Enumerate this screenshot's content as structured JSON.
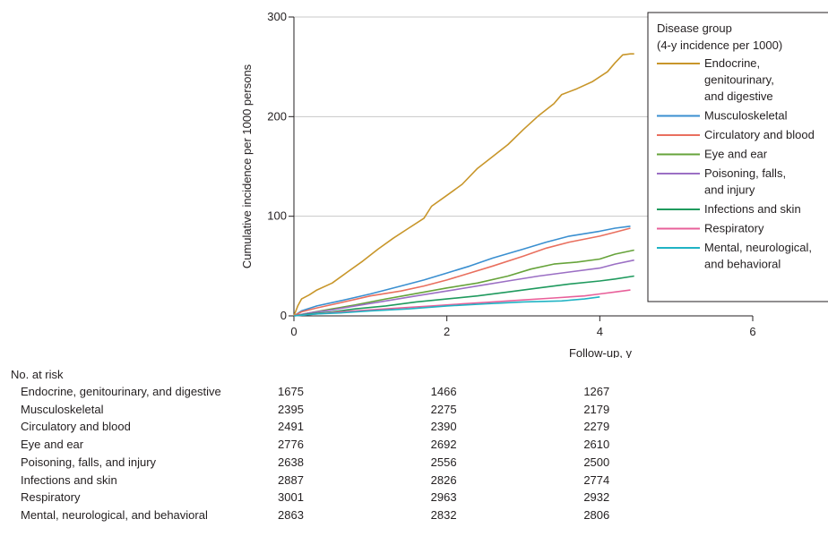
{
  "chart_data": {
    "type": "line",
    "title": "",
    "xlabel": "Follow-up, y",
    "ylabel": "Cumulative incidence per 1000 persons",
    "xlim": [
      0,
      6
    ],
    "ylim": [
      0,
      300
    ],
    "x_ticks": [
      "0",
      "2",
      "4",
      "6"
    ],
    "y_ticks": [
      "0",
      "100",
      "200",
      "300"
    ],
    "grid": "horizontal",
    "legend": {
      "title_line1": "Disease group",
      "title_line2": "(4-y incidence per 1000)",
      "placement": "top-right"
    },
    "series": [
      {
        "name": "Endocrine, genitourinary, and digestive",
        "legend_lines": [
          "Endocrine,",
          "genitourinary,",
          "and digestive"
        ],
        "color": "#c8962a",
        "points": [
          [
            0,
            0
          ],
          [
            0.05,
            10
          ],
          [
            0.1,
            17
          ],
          [
            0.2,
            21
          ],
          [
            0.3,
            26
          ],
          [
            0.5,
            33
          ],
          [
            0.7,
            44
          ],
          [
            0.9,
            55
          ],
          [
            1.1,
            67
          ],
          [
            1.3,
            78
          ],
          [
            1.5,
            88
          ],
          [
            1.7,
            98
          ],
          [
            1.8,
            110
          ],
          [
            2.0,
            121
          ],
          [
            2.2,
            132
          ],
          [
            2.4,
            148
          ],
          [
            2.6,
            160
          ],
          [
            2.8,
            172
          ],
          [
            3.0,
            187
          ],
          [
            3.2,
            201
          ],
          [
            3.4,
            213
          ],
          [
            3.5,
            222
          ],
          [
            3.7,
            228
          ],
          [
            3.9,
            235
          ],
          [
            4.0,
            240
          ],
          [
            4.1,
            245
          ],
          [
            4.2,
            254
          ],
          [
            4.3,
            262
          ],
          [
            4.4,
            263
          ],
          [
            4.45,
            263
          ]
        ]
      },
      {
        "name": "Musculoskeletal",
        "legend_lines": [
          "Musculoskeletal"
        ],
        "color": "#3a8fd0",
        "points": [
          [
            0,
            0
          ],
          [
            0.1,
            5
          ],
          [
            0.3,
            10
          ],
          [
            0.6,
            15
          ],
          [
            1.0,
            22
          ],
          [
            1.4,
            30
          ],
          [
            1.7,
            36
          ],
          [
            2.0,
            43
          ],
          [
            2.3,
            50
          ],
          [
            2.6,
            58
          ],
          [
            3.0,
            67
          ],
          [
            3.3,
            74
          ],
          [
            3.6,
            80
          ],
          [
            4.0,
            85
          ],
          [
            4.2,
            88
          ],
          [
            4.4,
            90
          ]
        ]
      },
      {
        "name": "Circulatory and blood",
        "legend_lines": [
          "Circulatory and blood"
        ],
        "color": "#e96f5e",
        "points": [
          [
            0,
            0
          ],
          [
            0.1,
            4
          ],
          [
            0.3,
            8
          ],
          [
            0.6,
            13
          ],
          [
            1.0,
            20
          ],
          [
            1.4,
            25
          ],
          [
            1.7,
            30
          ],
          [
            2.0,
            36
          ],
          [
            2.3,
            43
          ],
          [
            2.6,
            50
          ],
          [
            3.0,
            60
          ],
          [
            3.3,
            68
          ],
          [
            3.6,
            74
          ],
          [
            4.0,
            80
          ],
          [
            4.2,
            84
          ],
          [
            4.4,
            88
          ]
        ]
      },
      {
        "name": "Eye and ear",
        "legend_lines": [
          "Eye and ear"
        ],
        "color": "#66a33a",
        "points": [
          [
            0,
            0
          ],
          [
            0.2,
            3
          ],
          [
            0.5,
            7
          ],
          [
            0.8,
            11
          ],
          [
            1.2,
            17
          ],
          [
            1.5,
            21
          ],
          [
            2.0,
            28
          ],
          [
            2.4,
            33
          ],
          [
            2.8,
            40
          ],
          [
            3.1,
            47
          ],
          [
            3.4,
            52
          ],
          [
            3.7,
            54
          ],
          [
            4.0,
            57
          ],
          [
            4.2,
            62
          ],
          [
            4.45,
            66
          ]
        ]
      },
      {
        "name": "Poisoning, falls, and injury",
        "legend_lines": [
          "Poisoning, falls,",
          "and injury"
        ],
        "color": "#9b6fc4",
        "points": [
          [
            0,
            0
          ],
          [
            0.2,
            3
          ],
          [
            0.5,
            6
          ],
          [
            0.8,
            10
          ],
          [
            1.2,
            15
          ],
          [
            1.6,
            20
          ],
          [
            2.0,
            25
          ],
          [
            2.4,
            30
          ],
          [
            2.8,
            35
          ],
          [
            3.2,
            40
          ],
          [
            3.6,
            44
          ],
          [
            4.0,
            48
          ],
          [
            4.2,
            52
          ],
          [
            4.45,
            56
          ]
        ]
      },
      {
        "name": "Infections and skin",
        "legend_lines": [
          "Infections and skin"
        ],
        "color": "#1f9a5e",
        "points": [
          [
            0,
            0
          ],
          [
            0.2,
            2
          ],
          [
            0.5,
            4
          ],
          [
            0.8,
            7
          ],
          [
            1.2,
            10
          ],
          [
            1.6,
            14
          ],
          [
            2.0,
            17
          ],
          [
            2.4,
            20
          ],
          [
            2.8,
            24
          ],
          [
            3.2,
            28
          ],
          [
            3.6,
            32
          ],
          [
            4.0,
            35
          ],
          [
            4.2,
            37
          ],
          [
            4.45,
            40
          ]
        ]
      },
      {
        "name": "Respiratory",
        "legend_lines": [
          "Respiratory"
        ],
        "color": "#e8609a",
        "points": [
          [
            0,
            0
          ],
          [
            0.3,
            2
          ],
          [
            0.6,
            4
          ],
          [
            1.0,
            6
          ],
          [
            1.4,
            8
          ],
          [
            1.8,
            10
          ],
          [
            2.2,
            12
          ],
          [
            2.6,
            14
          ],
          [
            3.0,
            16
          ],
          [
            3.4,
            18
          ],
          [
            3.8,
            20
          ],
          [
            4.0,
            22
          ],
          [
            4.2,
            24
          ],
          [
            4.4,
            26
          ]
        ]
      },
      {
        "name": "Mental, neurological, and behavioral",
        "legend_lines": [
          "Mental, neurological,",
          "and behavioral"
        ],
        "color": "#20b3c4",
        "points": [
          [
            0,
            0
          ],
          [
            0.3,
            2
          ],
          [
            0.6,
            3
          ],
          [
            1.0,
            5
          ],
          [
            1.5,
            7
          ],
          [
            2.0,
            10
          ],
          [
            2.5,
            12
          ],
          [
            3.0,
            14
          ],
          [
            3.5,
            15
          ],
          [
            3.8,
            17
          ],
          [
            4.0,
            19
          ]
        ]
      }
    ]
  },
  "at_risk": {
    "title": "No. at risk",
    "times": [
      "0",
      "2",
      "4"
    ],
    "rows": [
      {
        "label": "Endocrine, genitourinary, and digestive",
        "values": [
          "1675",
          "1466",
          "1267"
        ]
      },
      {
        "label": "Musculoskeletal",
        "values": [
          "2395",
          "2275",
          "2179"
        ]
      },
      {
        "label": "Circulatory and blood",
        "values": [
          "2491",
          "2390",
          "2279"
        ]
      },
      {
        "label": "Eye and ear",
        "values": [
          "2776",
          "2692",
          "2610"
        ]
      },
      {
        "label": "Poisoning, falls, and injury",
        "values": [
          "2638",
          "2556",
          "2500"
        ]
      },
      {
        "label": "Infections and skin",
        "values": [
          "2887",
          "2826",
          "2774"
        ]
      },
      {
        "label": "Respiratory",
        "values": [
          "3001",
          "2963",
          "2932"
        ]
      },
      {
        "label": "Mental, neurological, and behavioral",
        "values": [
          "2863",
          "2832",
          "2806"
        ]
      }
    ]
  }
}
